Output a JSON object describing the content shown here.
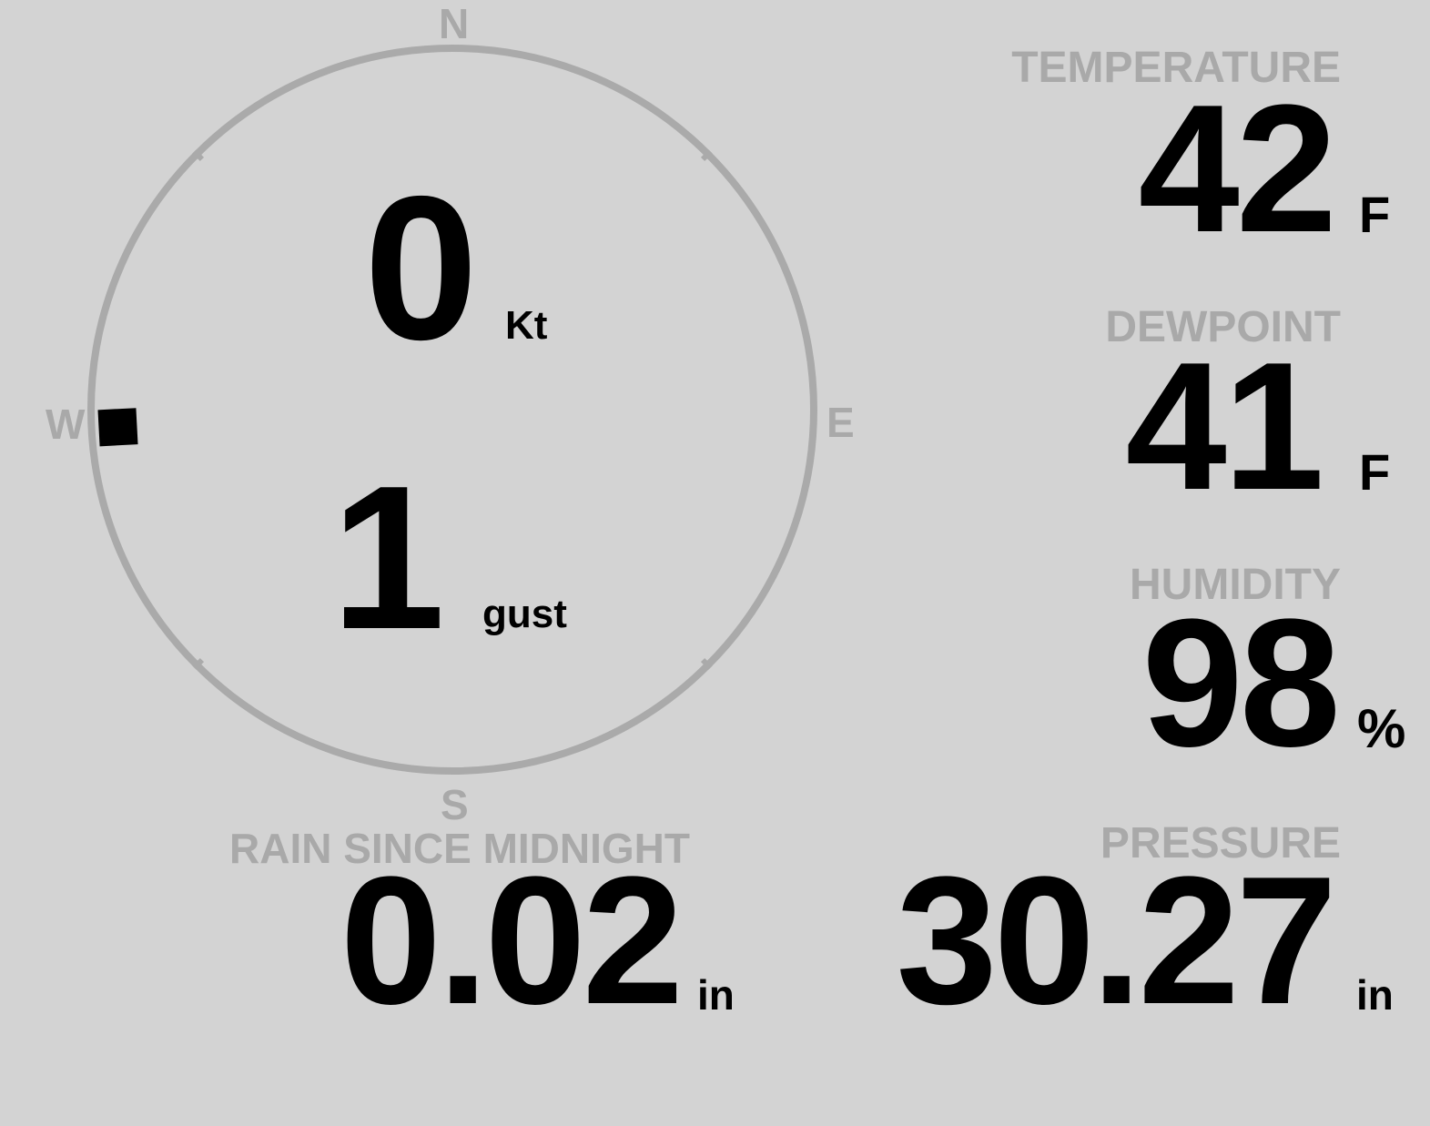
{
  "colors": {
    "background": "#d3d3d3",
    "label": "#a9a9a9",
    "value": "#000000",
    "ring": "#aaaaaa"
  },
  "wind": {
    "compass": {
      "north": "N",
      "south": "S",
      "east": "E",
      "west": "W"
    },
    "direction_deg": 267,
    "speed": "0",
    "speed_unit": "Kt",
    "gust": "1",
    "gust_unit": "gust"
  },
  "temperature": {
    "label": "TEMPERATURE",
    "value": "42",
    "unit": "F"
  },
  "dewpoint": {
    "label": "DEWPOINT",
    "value": "41",
    "unit": "F"
  },
  "humidity": {
    "label": "HUMIDITY",
    "value": "98",
    "unit": "%"
  },
  "rain": {
    "label": "RAIN SINCE MIDNIGHT",
    "value": "0.02",
    "unit": "in"
  },
  "pressure": {
    "label": "PRESSURE",
    "value": "30.27",
    "unit": "in"
  }
}
